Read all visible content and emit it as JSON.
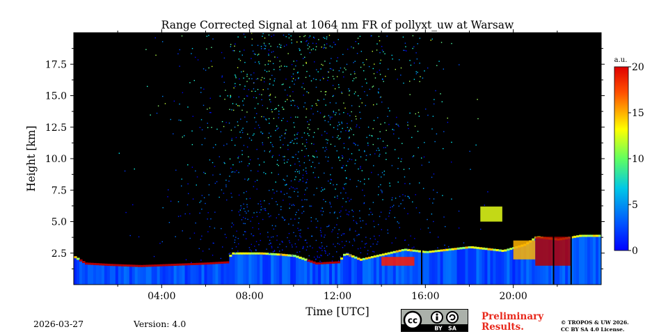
{
  "chart_data": {
    "type": "heatmap",
    "title": "Range Corrected Signal at 1064 nm FR of pollyxt_uw at Warsaw",
    "xlabel": "Time [UTC]",
    "ylabel": "Height [km]",
    "xlim_hours": [
      0,
      24
    ],
    "ylim_km": [
      0,
      20
    ],
    "x_ticks": [
      {
        "hour": 4,
        "label": "04:00"
      },
      {
        "hour": 8,
        "label": "08:00"
      },
      {
        "hour": 12,
        "label": "12:00"
      },
      {
        "hour": 16,
        "label": "16:00"
      },
      {
        "hour": 20,
        "label": "20:00"
      }
    ],
    "x_minor_ticks_hours": [
      2,
      6,
      10,
      14,
      18,
      22
    ],
    "y_ticks": [
      {
        "km": 2.5,
        "label": "2.5"
      },
      {
        "km": 5.0,
        "label": "5.0"
      },
      {
        "km": 7.5,
        "label": "7.5"
      },
      {
        "km": 10.0,
        "label": "10.0"
      },
      {
        "km": 12.5,
        "label": "12.5"
      },
      {
        "km": 15.0,
        "label": "15.0"
      },
      {
        "km": 17.5,
        "label": "17.5"
      }
    ],
    "y_minor_ticks_km": [
      1.25,
      3.75,
      6.25,
      8.75,
      11.25,
      13.75,
      16.25,
      18.75
    ],
    "colorbar": {
      "unit": "a.u.",
      "range": [
        0,
        20
      ],
      "ticks": [
        {
          "value": 0,
          "label": "0"
        },
        {
          "value": 5,
          "label": "5"
        },
        {
          "value": 10,
          "label": "10"
        },
        {
          "value": 15,
          "label": "15"
        },
        {
          "value": 20,
          "label": "20"
        }
      ]
    },
    "boundary_layer_top_km": [
      [
        0.0,
        2.2
      ],
      [
        0.5,
        1.7
      ],
      [
        1.5,
        1.6
      ],
      [
        3.0,
        1.5
      ],
      [
        4.5,
        1.6
      ],
      [
        6.0,
        1.7
      ],
      [
        7.0,
        1.8
      ],
      [
        7.1,
        2.5
      ],
      [
        8.5,
        2.5
      ],
      [
        9.4,
        2.4
      ],
      [
        10.0,
        2.3
      ],
      [
        11.0,
        1.7
      ],
      [
        12.0,
        1.8
      ],
      [
        12.3,
        2.5
      ],
      [
        13.0,
        2.0
      ],
      [
        14.0,
        2.4
      ],
      [
        15.0,
        2.8
      ],
      [
        16.0,
        2.6
      ],
      [
        17.0,
        2.8
      ],
      [
        18.0,
        3.0
      ],
      [
        19.5,
        2.7
      ],
      [
        20.5,
        3.2
      ],
      [
        21.0,
        3.8
      ],
      [
        22.0,
        3.6
      ],
      [
        23.0,
        3.9
      ],
      [
        24.0,
        3.9
      ]
    ],
    "aerosol_layers": [
      {
        "t_start": 14.0,
        "t_end": 15.5,
        "h_bottom_km": 1.5,
        "h_top_km": 2.2,
        "signal": 17
      },
      {
        "t_start": 18.5,
        "t_end": 19.5,
        "h_bottom_km": 5.0,
        "h_top_km": 6.2,
        "signal": 12
      },
      {
        "t_start": 20.0,
        "t_end": 21.0,
        "h_bottom_km": 2.0,
        "h_top_km": 3.5,
        "signal": 14
      },
      {
        "t_start": 21.0,
        "t_end": 22.6,
        "h_bottom_km": 1.5,
        "h_top_km": 3.8,
        "signal": 19
      }
    ],
    "data_gaps_hours": [
      15.8,
      21.8,
      22.6
    ]
  },
  "footer": {
    "date": "2026-03-27",
    "version": "Version: 4.0",
    "license_badge": {
      "left": "BY",
      "right": "SA",
      "cc": "cc"
    },
    "preliminary": "Preliminary Results.",
    "copyright_line1": "© TROPOS & UW 2026.",
    "copyright_line2": "CC BY SA 4.0 License."
  }
}
